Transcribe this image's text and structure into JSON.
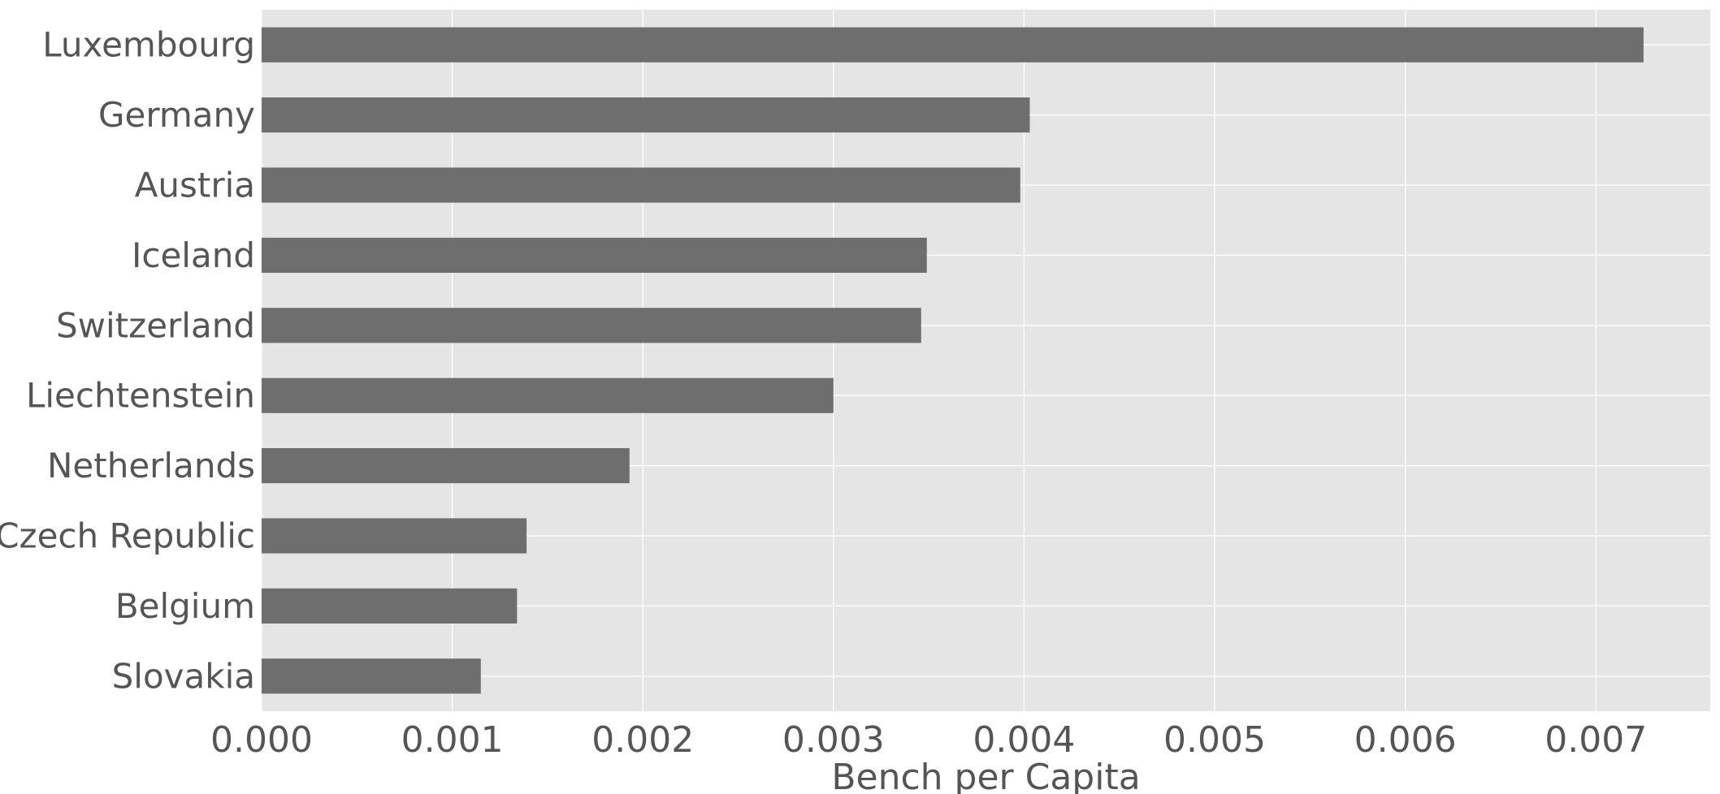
{
  "chart_data": {
    "type": "bar",
    "orientation": "horizontal",
    "title": "",
    "xlabel": "Bench per Capita",
    "ylabel": "",
    "categories": [
      "Luxembourg",
      "Germany",
      "Austria",
      "Iceland",
      "Switzerland",
      "Liechtenstein",
      "Netherlands",
      "Czech Republic",
      "Belgium",
      "Slovakia"
    ],
    "values": [
      0.00725,
      0.00403,
      0.00398,
      0.00349,
      0.00346,
      0.003,
      0.00193,
      0.00139,
      0.00134,
      0.00115
    ],
    "xlim": [
      0,
      0.0076
    ],
    "x_ticks": [
      0,
      0.001,
      0.002,
      0.003,
      0.004,
      0.005,
      0.006,
      0.007
    ],
    "x_tick_labels": [
      "0.000",
      "0.001",
      "0.002",
      "0.003",
      "0.004",
      "0.005",
      "0.006",
      "0.007"
    ],
    "grid": true,
    "legend": "none",
    "colors": {
      "bar": "#6e6e6e",
      "plot_background": "#e5e5e5",
      "grid": "#ffffff",
      "text": "#555555"
    }
  }
}
